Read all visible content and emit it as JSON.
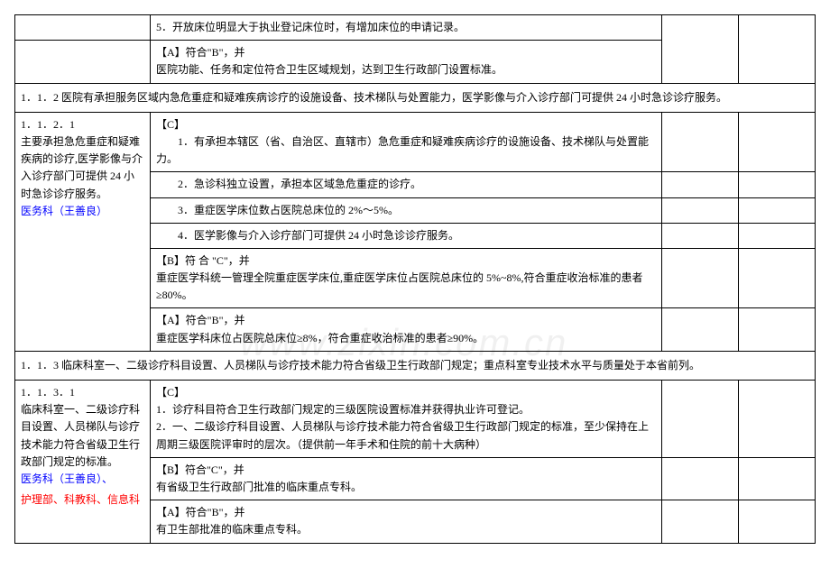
{
  "watermark": "www.zixin.com.cn",
  "block1": {
    "row5": "5．开放床位明显大于执业登记床位时，有增加床位的申请记录。",
    "rowA": "【A】符合\"B\"，并\n医院功能、任务和定位符合卫生区域规划，达到卫生行政部门设置标准。"
  },
  "sec112": "1．1．2 医院有承担服务区域内急危重症和疑难疾病诊疗的设施设备、技术梯队与处置能力，医学影像与介入诊疗部门可提供 24 小时急诊诊疗服务。",
  "block112": {
    "left_plain": "1．1．2．1\n主要承担急危重症和疑难疾病的诊疗,医学影像与介入诊疗部门可提供 24 小时急诊诊疗服务。",
    "left_blue": "医务科（王善良）",
    "c_head": "【C】",
    "c1": "　　1．有承担本辖区（省、自治区、直辖市）急危重症和疑难疾病诊疗的设施设备、技术梯队与处置能力。",
    "c2": "　　2．急诊科独立设置，承担本区域急危重症的诊疗。",
    "c3": "　　3．重症医学床位数占医院总床位的 2%～5%。",
    "c4": "　　4．医学影像与介入诊疗部门可提供 24 小时急诊诊疗服务。",
    "b": "【B】符 合 \"C\"，并\n重症医学科统一管理全院重症医学床位,重症医学床位占医院总床位的 5%~8%,符合重症收治标准的患者≥80%。",
    "a": "【A】符合\"B\"，并\n重症医学科床位占医院总床位≥8%，符合重症收治标准的患者≥90%。"
  },
  "sec113": "1．1．3 临床科室一、二级诊疗科目设置、人员梯队与诊疗技术能力符合省级卫生行政部门规定；重点科室专业技术水平与质量处于本省前列。",
  "block113": {
    "left_plain": "1．1．3．1\n临床科室一、二级诊疗科目设置、人员梯队与诊疗技术能力符合省级卫生行政部门规定的标准。",
    "left_blue": "医务科（王善良）、",
    "left_red": "护理部、科教科、信息科",
    "c": "【C】\n1．诊疗科目符合卫生行政部门规定的三级医院设置标准并获得执业许可登记。\n2．一、二级诊疗科目设置、人员梯队与诊疗技术能力符合省级卫生行政部门规定的标准，至少保持在上周期三级医院评审时的层次。（提供前一年手术和住院的前十大病种）",
    "b": "【B】符合\"C\"，并\n有省级卫生行政部门批准的临床重点专科。",
    "a": "【A】符合\"B\"，并\n有卫生部批准的临床重点专科。"
  }
}
